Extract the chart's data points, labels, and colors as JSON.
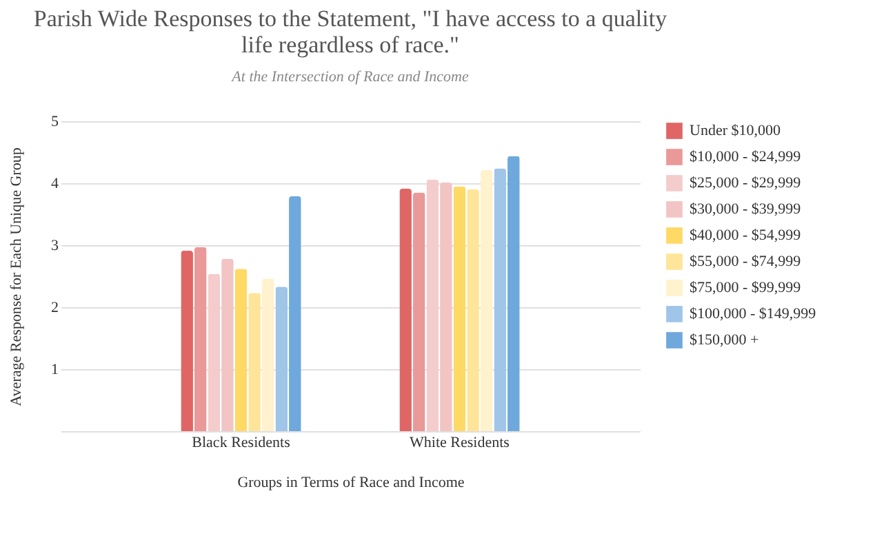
{
  "chart_data": {
    "type": "bar",
    "title": "Parish Wide Responses to the Statement, \"I have access to a quality life regardless of race.\"",
    "subtitle": "At the Intersection of Race and Income",
    "xlabel": "Groups in Terms of Race and Income",
    "ylabel": "Average Response for Each Unique Group",
    "categories": [
      "Black Residents",
      "White Residents"
    ],
    "series": [
      {
        "name": "Under $10,000",
        "color": "#e06666",
        "values": [
          2.91,
          3.91
        ]
      },
      {
        "name": "$10,000 - $24,999",
        "color": "#ea9999",
        "values": [
          2.97,
          3.85
        ]
      },
      {
        "name": "$25,000 - $29,999",
        "color": "#f4cccc",
        "values": [
          2.54,
          4.06
        ]
      },
      {
        "name": "$30,000 - $39,999",
        "color": "#f2c4c4",
        "values": [
          2.78,
          4.01
        ]
      },
      {
        "name": "$40,000 - $54,999",
        "color": "#ffd966",
        "values": [
          2.62,
          3.95
        ]
      },
      {
        "name": "$55,000 - $74,999",
        "color": "#ffe599",
        "values": [
          2.23,
          3.9
        ]
      },
      {
        "name": "$75,000 - $99,999",
        "color": "#fff2cc",
        "values": [
          2.46,
          4.21
        ]
      },
      {
        "name": "$100,000 - $149,999",
        "color": "#9fc5e8",
        "values": [
          2.33,
          4.24
        ]
      },
      {
        "name": "$150,000 +",
        "color": "#6fa8dc",
        "values": [
          3.79,
          4.44
        ]
      }
    ],
    "ylim": [
      0,
      5
    ],
    "yticks": [
      {
        "value": 0,
        "label": null
      },
      1,
      2,
      3,
      4,
      5
    ],
    "grid": "y",
    "legend": "right"
  }
}
